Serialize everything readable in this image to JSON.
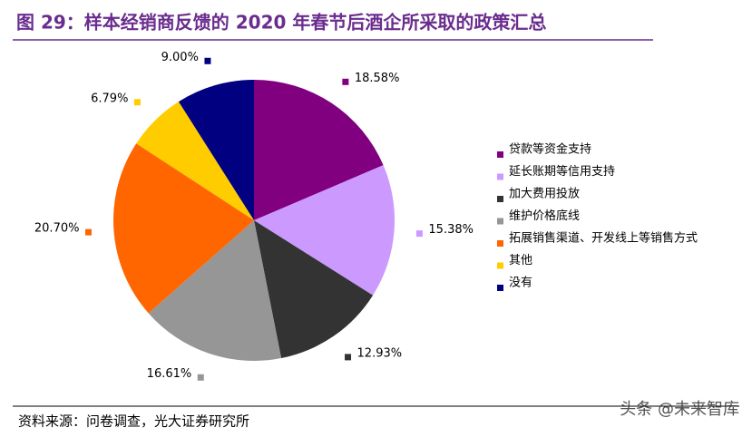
{
  "chart_data": {
    "type": "pie",
    "title": "图 29：样本经销商反馈的 2020 年春节后酒企所采取的政策汇总",
    "categories": [
      "贷款等资金支持",
      "延长账期等信用支持",
      "加大费用投放",
      "维护价格底线",
      "拓展销售渠道、开发线上等销售方式",
      "其他",
      "没有"
    ],
    "values": [
      18.58,
      15.38,
      12.93,
      16.61,
      20.7,
      6.79,
      9.0
    ],
    "value_labels": [
      "18.58%",
      "15.38%",
      "12.93%",
      "16.61%",
      "20.70%",
      "6.79%",
      "9.00%"
    ],
    "colors": [
      "#800080",
      "#cc99ff",
      "#333333",
      "#969696",
      "#ff6600",
      "#ffcc00",
      "#000080"
    ],
    "legend": "right"
  },
  "source": "资料来源：问卷调查，光大证券研究所",
  "watermark": "头条 @未来智库"
}
